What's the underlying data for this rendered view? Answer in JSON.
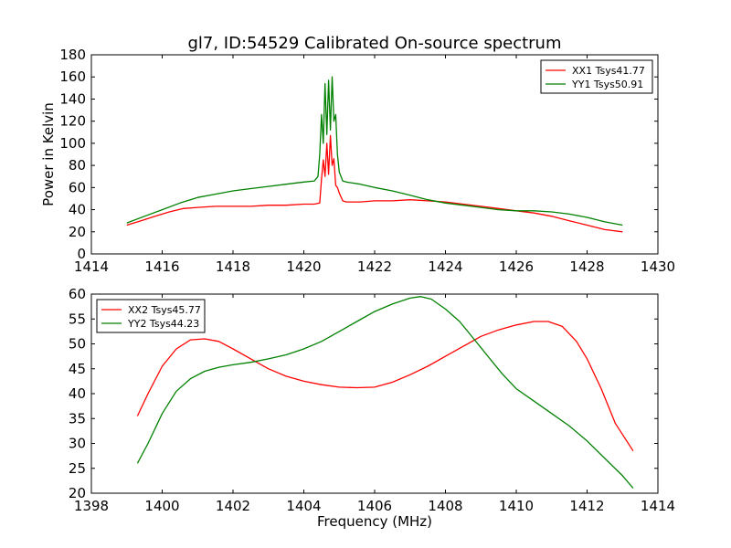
{
  "figure_title": "gl7, ID:54529 Calibrated On-source spectrum",
  "chart_data": [
    {
      "type": "line",
      "ylabel": "Power in Kelvin",
      "xlabel": "",
      "xlim": [
        1414,
        1430
      ],
      "ylim": [
        0,
        180
      ],
      "xticks": [
        1414,
        1416,
        1418,
        1420,
        1422,
        1424,
        1426,
        1428,
        1430
      ],
      "yticks": [
        0,
        20,
        40,
        60,
        80,
        100,
        120,
        140,
        160,
        180
      ],
      "legend_position": "top-right",
      "series": [
        {
          "name": "XX1 Tsys41.77",
          "color": "#ff0000",
          "x": [
            1415.0,
            1415.4,
            1415.8,
            1416.2,
            1416.6,
            1417.0,
            1417.5,
            1418.0,
            1418.5,
            1419.0,
            1419.5,
            1420.0,
            1420.3,
            1420.45,
            1420.5,
            1420.55,
            1420.6,
            1420.65,
            1420.7,
            1420.75,
            1420.8,
            1420.85,
            1420.9,
            1420.95,
            1421.0,
            1421.1,
            1421.2,
            1421.3,
            1421.6,
            1422.0,
            1422.5,
            1423.0,
            1423.5,
            1424.0,
            1424.5,
            1425.0,
            1425.5,
            1426.0,
            1426.5,
            1427.0,
            1427.5,
            1428.0,
            1428.5,
            1429.0
          ],
          "y": [
            26,
            30,
            34,
            38,
            41,
            42,
            43,
            43,
            43,
            44,
            44,
            45,
            45,
            46,
            68,
            85,
            70,
            100,
            72,
            107,
            80,
            86,
            62,
            60,
            55,
            48,
            47,
            47,
            47,
            48,
            48,
            49,
            48,
            47,
            45,
            43,
            41,
            39,
            37,
            34,
            30,
            26,
            22,
            20
          ]
        },
        {
          "name": "YY1 Tsys50.91",
          "color": "#008000",
          "x": [
            1415.0,
            1415.5,
            1416.0,
            1416.5,
            1417.0,
            1417.5,
            1418.0,
            1418.5,
            1419.0,
            1419.5,
            1420.0,
            1420.3,
            1420.4,
            1420.45,
            1420.5,
            1420.55,
            1420.6,
            1420.65,
            1420.7,
            1420.75,
            1420.8,
            1420.85,
            1420.9,
            1420.95,
            1421.0,
            1421.1,
            1421.2,
            1421.6,
            1422.0,
            1422.5,
            1423.0,
            1423.5,
            1424.0,
            1424.5,
            1425.0,
            1425.5,
            1426.0,
            1426.5,
            1427.0,
            1427.5,
            1428.0,
            1428.5,
            1429.0
          ],
          "y": [
            28,
            34,
            40,
            46,
            51,
            54,
            57,
            59,
            61,
            63,
            65,
            66,
            70,
            90,
            126,
            100,
            154,
            108,
            157,
            112,
            160,
            120,
            126,
            90,
            74,
            66,
            65,
            63,
            60,
            57,
            53,
            49,
            46,
            44,
            42,
            40,
            39,
            39,
            38,
            36,
            33,
            29,
            26
          ]
        }
      ]
    },
    {
      "type": "line",
      "xlabel": "Frequency (MHz)",
      "ylabel": "",
      "xlim": [
        1398,
        1414
      ],
      "ylim": [
        20,
        60
      ],
      "xticks": [
        1398,
        1400,
        1402,
        1404,
        1406,
        1408,
        1410,
        1412,
        1414
      ],
      "yticks": [
        20,
        25,
        30,
        35,
        40,
        45,
        50,
        55,
        60
      ],
      "legend_position": "top-left",
      "series": [
        {
          "name": "XX2 Tsys45.77",
          "color": "#ff0000",
          "x": [
            1399.3,
            1399.6,
            1400.0,
            1400.4,
            1400.8,
            1401.2,
            1401.6,
            1402.0,
            1402.5,
            1403.0,
            1403.5,
            1404.0,
            1404.5,
            1405.0,
            1405.5,
            1406.0,
            1406.5,
            1407.0,
            1407.5,
            1408.0,
            1408.5,
            1409.0,
            1409.5,
            1410.0,
            1410.5,
            1410.9,
            1411.3,
            1411.7,
            1412.0,
            1412.4,
            1412.8,
            1413.3
          ],
          "y": [
            35.5,
            40,
            45.5,
            49,
            50.8,
            51,
            50.5,
            49,
            47,
            45,
            43.5,
            42.5,
            41.8,
            41.3,
            41.2,
            41.3,
            42.3,
            43.8,
            45.5,
            47.5,
            49.5,
            51.5,
            52.8,
            53.8,
            54.5,
            54.5,
            53.5,
            50.5,
            47,
            41,
            34,
            28.5
          ]
        },
        {
          "name": "YY2 Tsys44.23",
          "color": "#008000",
          "x": [
            1399.3,
            1399.6,
            1400.0,
            1400.4,
            1400.8,
            1401.2,
            1401.6,
            1402.0,
            1402.5,
            1403.0,
            1403.5,
            1404.0,
            1404.5,
            1405.0,
            1405.5,
            1406.0,
            1406.5,
            1407.0,
            1407.3,
            1407.6,
            1408.0,
            1408.4,
            1408.8,
            1409.2,
            1409.6,
            1410.0,
            1410.5,
            1411.0,
            1411.5,
            1412.0,
            1412.5,
            1413.0,
            1413.3
          ],
          "y": [
            26,
            30,
            36,
            40.5,
            43,
            44.5,
            45.3,
            45.8,
            46.3,
            47,
            47.8,
            49,
            50.5,
            52.5,
            54.5,
            56.5,
            58,
            59.2,
            59.5,
            59,
            57,
            54.5,
            51,
            47.5,
            44,
            41,
            38.5,
            36,
            33.5,
            30.5,
            27,
            23.5,
            21
          ]
        }
      ]
    }
  ]
}
